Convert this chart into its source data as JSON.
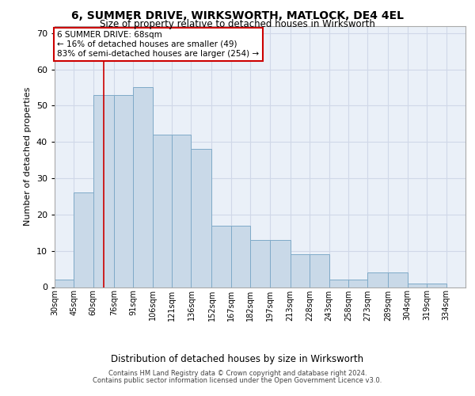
{
  "title1": "6, SUMMER DRIVE, WIRKSWORTH, MATLOCK, DE4 4EL",
  "title2": "Size of property relative to detached houses in Wirksworth",
  "xlabel": "Distribution of detached houses by size in Wirksworth",
  "ylabel": "Number of detached properties",
  "bar_labels": [
    "30sqm",
    "45sqm",
    "60sqm",
    "76sqm",
    "91sqm",
    "106sqm",
    "121sqm",
    "136sqm",
    "152sqm",
    "167sqm",
    "182sqm",
    "197sqm",
    "213sqm",
    "228sqm",
    "243sqm",
    "258sqm",
    "273sqm",
    "289sqm",
    "304sqm",
    "319sqm",
    "334sqm"
  ],
  "bar_values": [
    2,
    26,
    53,
    53,
    55,
    42,
    42,
    38,
    17,
    17,
    13,
    13,
    9,
    9,
    2,
    2,
    4,
    4,
    1,
    1,
    0
  ],
  "bar_color": "#c9d9e8",
  "bar_edge_color": "#7faac8",
  "grid_color": "#d0d8e8",
  "background_color": "#eaf0f8",
  "annotation_line1": "6 SUMMER DRIVE: 68sqm",
  "annotation_line2": "← 16% of detached houses are smaller (49)",
  "annotation_line3": "83% of semi-detached houses are larger (254) →",
  "annotation_box_color": "#ffffff",
  "annotation_border_color": "#cc0000",
  "property_line_x": 68,
  "bin_edges": [
    30,
    45,
    60,
    76,
    91,
    106,
    121,
    136,
    152,
    167,
    182,
    197,
    213,
    228,
    243,
    258,
    273,
    289,
    304,
    319,
    334,
    349
  ],
  "ylim": [
    0,
    72
  ],
  "yticks": [
    0,
    10,
    20,
    30,
    40,
    50,
    60,
    70
  ],
  "footer1": "Contains HM Land Registry data © Crown copyright and database right 2024.",
  "footer2": "Contains public sector information licensed under the Open Government Licence v3.0."
}
